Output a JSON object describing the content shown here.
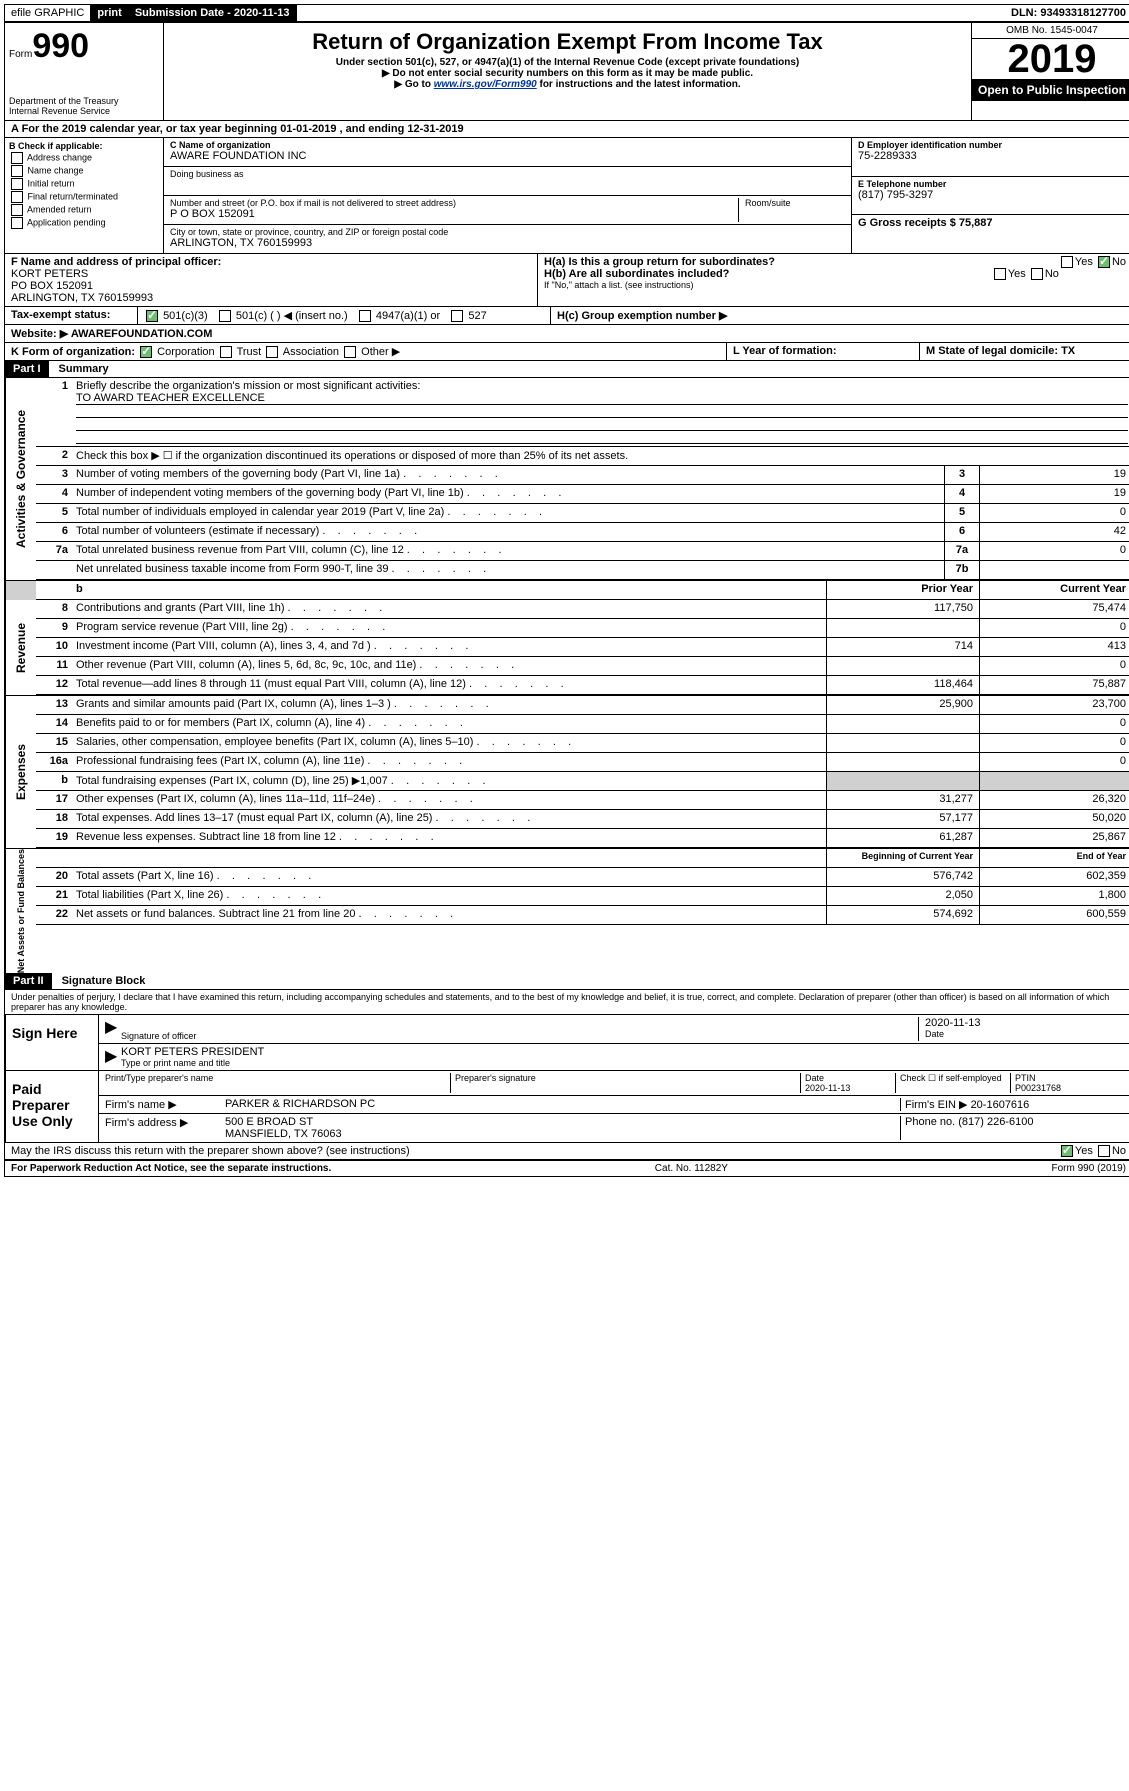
{
  "top": {
    "efile": "efile GRAPHIC",
    "print": "print",
    "subdate_label": "Submission Date - 2020-11-13",
    "dln": "DLN: 93493318127700"
  },
  "header": {
    "form_prefix": "Form",
    "form_num": "990",
    "dept": "Department of the Treasury",
    "irs": "Internal Revenue Service",
    "title": "Return of Organization Exempt From Income Tax",
    "sub1": "Under section 501(c), 527, or 4947(a)(1) of the Internal Revenue Code (except private foundations)",
    "sub2": "▶ Do not enter social security numbers on this form as it may be made public.",
    "sub3_pre": "▶ Go to ",
    "sub3_link": "www.irs.gov/Form990",
    "sub3_post": " for instructions and the latest information.",
    "omb": "OMB No. 1545-0047",
    "year": "2019",
    "open": "Open to Public Inspection"
  },
  "rowA": "A For the 2019 calendar year, or tax year beginning 01-01-2019    , and ending 12-31-2019",
  "boxB": {
    "title": "B Check if applicable:",
    "items": [
      "Address change",
      "Name change",
      "Initial return",
      "Final return/terminated",
      "Amended return",
      "Application pending"
    ]
  },
  "boxC": {
    "name_label": "C Name of organization",
    "name": "AWARE FOUNDATION INC",
    "dba_label": "Doing business as",
    "addr_label": "Number and street (or P.O. box if mail is not delivered to street address)",
    "addr": "P O BOX 152091",
    "room_label": "Room/suite",
    "city_label": "City or town, state or province, country, and ZIP or foreign postal code",
    "city": "ARLINGTON, TX  760159993"
  },
  "boxD": {
    "label": "D Employer identification number",
    "val": "75-2289333"
  },
  "boxE": {
    "label": "E Telephone number",
    "val": "(817) 795-3297"
  },
  "boxG": {
    "label": "G Gross receipts $ 75,887"
  },
  "boxF": {
    "label": "F  Name and address of principal officer:",
    "name": "KORT PETERS",
    "addr1": "PO BOX 152091",
    "addr2": "ARLINGTON, TX  760159993"
  },
  "boxH": {
    "a": "H(a)  Is this a group return for subordinates?",
    "b": "H(b)  Are all subordinates included?",
    "note": "If \"No,\" attach a list. (see instructions)",
    "c": "H(c)  Group exemption number ▶"
  },
  "rowI": {
    "label": "Tax-exempt status:",
    "opts": [
      "501(c)(3)",
      "501(c) (  ) ◀ (insert no.)",
      "4947(a)(1) or",
      "527"
    ]
  },
  "rowJ": {
    "label": "Website: ▶",
    "val": "AWAREFOUNDATION.COM"
  },
  "rowK": {
    "label": "K Form of organization:",
    "opts": [
      "Corporation",
      "Trust",
      "Association",
      "Other ▶"
    ],
    "l_label": "L Year of formation:",
    "m_label": "M State of legal domicile: TX"
  },
  "part1": {
    "title": "Part I",
    "sub": "Summary",
    "q1": "Briefly describe the organization's mission or most significant activities:",
    "mission": "TO AWARD TEACHER EXCELLENCE",
    "q2": "Check this box ▶ ☐  if the organization discontinued its operations or disposed of more than 25% of its net assets."
  },
  "sections": {
    "gov": "Activities & Governance",
    "rev": "Revenue",
    "exp": "Expenses",
    "net": "Net Assets or Fund Balances"
  },
  "lines": [
    {
      "n": "3",
      "d": "Number of voting members of the governing body (Part VI, line 1a)",
      "box": "3",
      "v2": "19"
    },
    {
      "n": "4",
      "d": "Number of independent voting members of the governing body (Part VI, line 1b)",
      "box": "4",
      "v2": "19"
    },
    {
      "n": "5",
      "d": "Total number of individuals employed in calendar year 2019 (Part V, line 2a)",
      "box": "5",
      "v2": "0"
    },
    {
      "n": "6",
      "d": "Total number of volunteers (estimate if necessary)",
      "box": "6",
      "v2": "42"
    },
    {
      "n": "7a",
      "d": "Total unrelated business revenue from Part VIII, column (C), line 12",
      "box": "7a",
      "v2": "0"
    },
    {
      "n": "",
      "d": "Net unrelated business taxable income from Form 990-T, line 39",
      "box": "7b",
      "v2": ""
    }
  ],
  "cols": {
    "prior": "Prior Year",
    "curr": "Current Year"
  },
  "rev": [
    {
      "n": "8",
      "d": "Contributions and grants (Part VIII, line 1h)",
      "p": "117,750",
      "c": "75,474"
    },
    {
      "n": "9",
      "d": "Program service revenue (Part VIII, line 2g)",
      "p": "",
      "c": "0"
    },
    {
      "n": "10",
      "d": "Investment income (Part VIII, column (A), lines 3, 4, and 7d )",
      "p": "714",
      "c": "413"
    },
    {
      "n": "11",
      "d": "Other revenue (Part VIII, column (A), lines 5, 6d, 8c, 9c, 10c, and 11e)",
      "p": "",
      "c": "0"
    },
    {
      "n": "12",
      "d": "Total revenue—add lines 8 through 11 (must equal Part VIII, column (A), line 12)",
      "p": "118,464",
      "c": "75,887"
    }
  ],
  "exp": [
    {
      "n": "13",
      "d": "Grants and similar amounts paid (Part IX, column (A), lines 1–3 )",
      "p": "25,900",
      "c": "23,700"
    },
    {
      "n": "14",
      "d": "Benefits paid to or for members (Part IX, column (A), line 4)",
      "p": "",
      "c": "0"
    },
    {
      "n": "15",
      "d": "Salaries, other compensation, employee benefits (Part IX, column (A), lines 5–10)",
      "p": "",
      "c": "0"
    },
    {
      "n": "16a",
      "d": "Professional fundraising fees (Part IX, column (A), line 11e)",
      "p": "",
      "c": "0"
    },
    {
      "n": "b",
      "d": "Total fundraising expenses (Part IX, column (D), line 25) ▶1,007",
      "p": "shade",
      "c": "shade"
    },
    {
      "n": "17",
      "d": "Other expenses (Part IX, column (A), lines 11a–11d, 11f–24e)",
      "p": "31,277",
      "c": "26,320"
    },
    {
      "n": "18",
      "d": "Total expenses. Add lines 13–17 (must equal Part IX, column (A), line 25)",
      "p": "57,177",
      "c": "50,020"
    },
    {
      "n": "19",
      "d": "Revenue less expenses. Subtract line 18 from line 12",
      "p": "61,287",
      "c": "25,867"
    }
  ],
  "netcols": {
    "beg": "Beginning of Current Year",
    "end": "End of Year"
  },
  "net": [
    {
      "n": "20",
      "d": "Total assets (Part X, line 16)",
      "p": "576,742",
      "c": "602,359"
    },
    {
      "n": "21",
      "d": "Total liabilities (Part X, line 26)",
      "p": "2,050",
      "c": "1,800"
    },
    {
      "n": "22",
      "d": "Net assets or fund balances. Subtract line 21 from line 20",
      "p": "574,692",
      "c": "600,559"
    }
  ],
  "part2": {
    "title": "Part II",
    "sub": "Signature Block",
    "decl": "Under penalties of perjury, I declare that I have examined this return, including accompanying schedules and statements, and to the best of my knowledge and belief, it is true, correct, and complete. Declaration of preparer (other than officer) is based on all information of which preparer has any knowledge."
  },
  "sign": {
    "here": "Sign Here",
    "sig_label": "Signature of officer",
    "date": "2020-11-13",
    "date_label": "Date",
    "name": "KORT PETERS  PRESIDENT",
    "name_label": "Type or print name and title"
  },
  "paid": {
    "label": "Paid Preparer Use Only",
    "h1": "Print/Type preparer's name",
    "h2": "Preparer's signature",
    "h3": "Date",
    "h3v": "2020-11-13",
    "h4": "Check ☐ if self-employed",
    "h5": "PTIN",
    "h5v": "P00231768",
    "firm_label": "Firm's name    ▶",
    "firm": "PARKER & RICHARDSON PC",
    "ein_label": "Firm's EIN ▶",
    "ein": "20-1607616",
    "addr_label": "Firm's address ▶",
    "addr1": "500 E BROAD ST",
    "addr2": "MANSFIELD, TX  76063",
    "phone_label": "Phone no.",
    "phone": "(817) 226-6100"
  },
  "footer": {
    "q": "May the IRS discuss this return with the preparer shown above? (see instructions)",
    "notice": "For Paperwork Reduction Act Notice, see the separate instructions.",
    "cat": "Cat. No. 11282Y",
    "form": "Form 990 (2019)"
  }
}
